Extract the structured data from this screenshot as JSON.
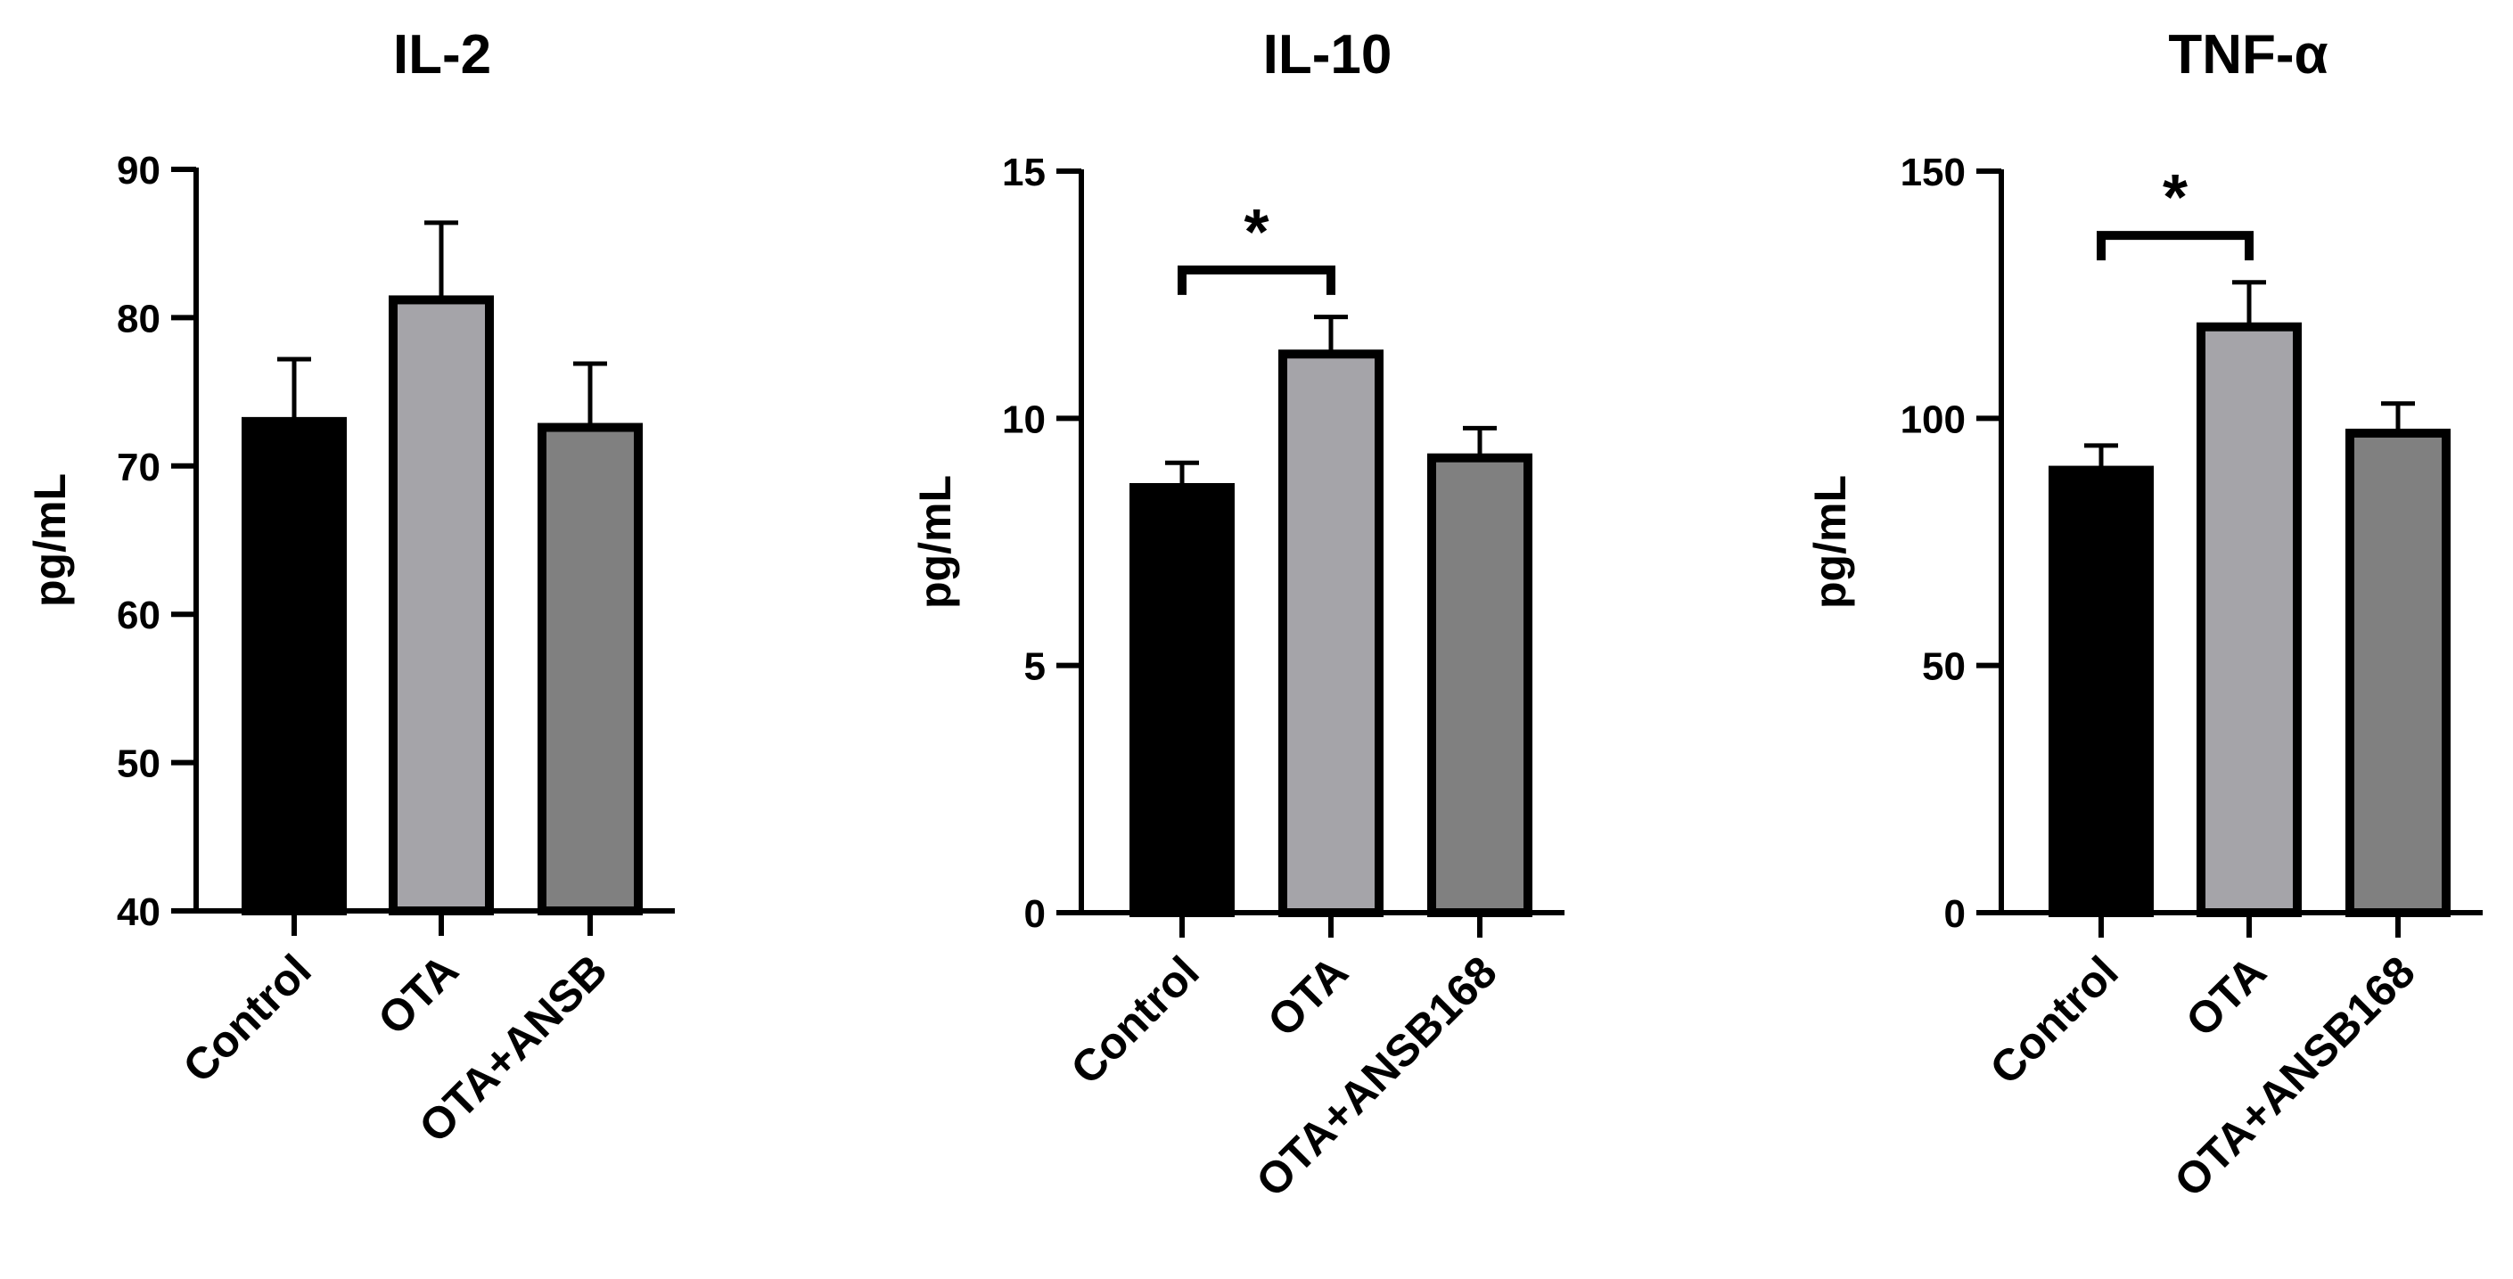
{
  "chart_data": [
    {
      "type": "bar",
      "title": "IL-2",
      "ylabel": "pg/mL",
      "xlabel": "",
      "categories": [
        "Control",
        "OTA",
        "OTA+ANSB"
      ],
      "values": [
        73,
        81.2,
        72.6
      ],
      "errors": [
        4.2,
        5.2,
        4.3
      ],
      "ylim": [
        40,
        90
      ],
      "yticks": [
        40,
        50,
        60,
        70,
        80,
        90
      ],
      "colors": [
        "#000000",
        "#a5a4a9",
        "#808080"
      ],
      "significance": []
    },
    {
      "type": "bar",
      "title": "IL-10",
      "ylabel": "pg/mL",
      "xlabel": "",
      "categories": [
        "Control",
        "OTA",
        "OTA+ANSB168"
      ],
      "values": [
        8.6,
        11.3,
        9.2
      ],
      "errors": [
        0.5,
        0.75,
        0.6
      ],
      "ylim": [
        0,
        15
      ],
      "yticks": [
        0,
        5,
        10,
        15
      ],
      "colors": [
        "#000000",
        "#a5a4a9",
        "#808080"
      ],
      "significance": [
        {
          "from": 0,
          "to": 1,
          "label": "*",
          "y": 13
        }
      ]
    },
    {
      "type": "bar",
      "title": "TNF-α",
      "ylabel": "pg/mL",
      "xlabel": "",
      "categories": [
        "Control",
        "OTA",
        "OTA+ANSB168"
      ],
      "values": [
        89.5,
        118.5,
        97
      ],
      "errors": [
        5,
        9,
        6
      ],
      "ylim": [
        0,
        150
      ],
      "yticks": [
        0,
        50,
        100,
        150
      ],
      "colors": [
        "#000000",
        "#a5a4a9",
        "#808080"
      ],
      "significance": [
        {
          "from": 0,
          "to": 1,
          "label": "*",
          "y": 137
        }
      ]
    }
  ]
}
